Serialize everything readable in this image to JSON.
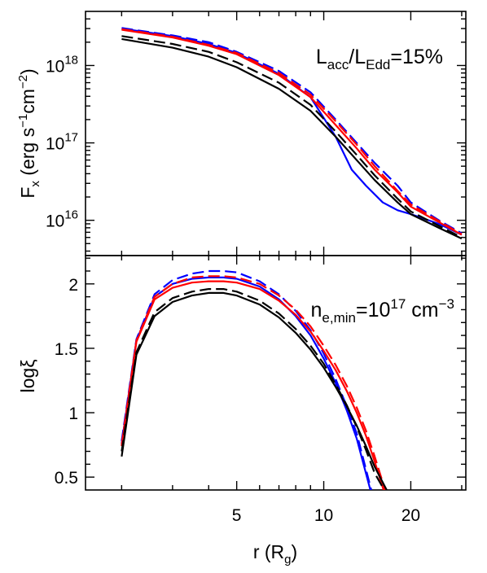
{
  "chart_data": {
    "type": "line",
    "x_scale": "log",
    "x_ticks": [
      {
        "value": 5,
        "label": "5"
      },
      {
        "value": 10,
        "label": "10"
      },
      {
        "value": 20,
        "label": "20"
      }
    ],
    "x_minor_ticks": [
      2,
      3,
      4,
      6,
      7,
      8,
      9,
      30
    ],
    "xlabel": {
      "main": "r (R",
      "sub": "g",
      "end": ")"
    },
    "xlim": [
      1.5,
      31
    ],
    "panels": [
      {
        "id": "top",
        "ylabel": {
          "main": "F",
          "sub": "x",
          "rest": " (erg s",
          "sup1": "−1",
          "mid": "cm",
          "sup2": "−2",
          "end": ")"
        },
        "y_scale": "log",
        "ylim": [
          3500000000000000,
          5000000000000000000
        ],
        "y_ticks": [
          {
            "value": 10000000000000000,
            "base": "10",
            "exp": "16"
          },
          {
            "value": 100000000000000000,
            "base": "10",
            "exp": "17"
          },
          {
            "value": 1000000000000000000,
            "base": "10",
            "exp": "18"
          }
        ],
        "annotation": {
          "a": "L",
          "a_sub": "acc",
          "b": "/L",
          "b_sub": "Edd",
          "c": "=15%"
        },
        "series": [
          {
            "color": "#0000ff",
            "dash": "solid",
            "x": [
              2,
              3,
              4,
              5,
              7,
              9,
              11,
              12.5,
              14,
              16,
              18,
              20,
              25,
              30
            ],
            "y": [
              3e+18,
              2.4e+18,
              1.9e+18,
              1.45e+18,
              7.8e+17,
              3.9e+17,
              1.2e+17,
              4.5e+16,
              2.8e+16,
              1.7e+16,
              1.35e+16,
              1.2e+16,
              9000000000000000.0,
              6500000000000000.0
            ]
          },
          {
            "color": "#0000ff",
            "dash": "dashed",
            "x": [
              2,
              3,
              4,
              5,
              7,
              9,
              11,
              13,
              15,
              18,
              20,
              25,
              30
            ],
            "y": [
              3.05e+18,
              2.45e+18,
              2e+18,
              1.5e+18,
              8.5e+17,
              4.5e+17,
              2e+17,
              1e+17,
              5.5e+16,
              2.8e+16,
              1.7e+16,
              1e+16,
              6800000000000000.0
            ]
          },
          {
            "color": "#ff0000",
            "dash": "solid",
            "x": [
              2,
              3,
              4,
              5,
              7,
              9,
              11,
              13,
              15,
              18,
              20,
              25,
              30
            ],
            "y": [
              2.9e+18,
              2.3e+18,
              1.8e+18,
              1.4e+18,
              7.5e+17,
              3.9e+17,
              1.7e+17,
              8.5e+16,
              4.5e+16,
              2.3e+16,
              1.5e+16,
              9500000000000000.0,
              6500000000000000.0
            ]
          },
          {
            "color": "#ff0000",
            "dash": "dashed",
            "x": [
              2,
              3,
              4,
              5,
              7,
              9,
              11,
              13,
              15,
              18,
              20,
              25,
              30
            ],
            "y": [
              2.95e+18,
              2.35e+18,
              1.85e+18,
              1.45e+18,
              8e+17,
              4.2e+17,
              1.9e+17,
              9.5e+16,
              5e+16,
              2.4e+16,
              1.6e+16,
              9800000000000000.0,
              6600000000000000.0
            ]
          },
          {
            "color": "#000000",
            "dash": "solid",
            "x": [
              2,
              3,
              4,
              5,
              7,
              9,
              11,
              13,
              15,
              18,
              20,
              25,
              30
            ],
            "y": [
              2.2e+18,
              1.7e+18,
              1.3e+18,
              9.5e+17,
              5e+17,
              2.6e+17,
              1.2e+17,
              6e+16,
              3.3e+16,
              1.7e+16,
              1.2e+16,
              8000000000000000.0,
              5800000000000000.0
            ]
          },
          {
            "color": "#000000",
            "dash": "dashed",
            "x": [
              2,
              3,
              4,
              5,
              7,
              9,
              11,
              13,
              15,
              18,
              20,
              25,
              30
            ],
            "y": [
              2.4e+18,
              1.9e+18,
              1.5e+18,
              1.1e+18,
              6e+17,
              3.1e+17,
              1.4e+17,
              7e+16,
              3.8e+16,
              1.9e+16,
              1.3e+16,
              8500000000000000.0,
              6000000000000000.0
            ]
          }
        ]
      },
      {
        "id": "bottom",
        "ylabel": {
          "main": "logξ"
        },
        "y_scale": "linear",
        "ylim": [
          0.4,
          2.22
        ],
        "y_ticks": [
          {
            "value": 0.5,
            "label": "0.5"
          },
          {
            "value": 1,
            "label": "1"
          },
          {
            "value": 1.5,
            "label": "1.5"
          },
          {
            "value": 2,
            "label": "2"
          }
        ],
        "annotation": {
          "a": "n",
          "a_sub": "e,min",
          "b": "=10",
          "b_sup": "17",
          "c": " cm",
          "c_sup": "−3"
        },
        "series": [
          {
            "color": "#0000ff",
            "dash": "solid",
            "x": [
              2,
              2.25,
              2.6,
              3,
              3.5,
              4,
              4.5,
              5,
              6,
              7,
              8,
              9,
              10,
              11,
              12,
              13,
              14.5
            ],
            "y": [
              0.76,
              1.56,
              1.9,
              2.0,
              2.04,
              2.05,
              2.05,
              2.04,
              1.98,
              1.88,
              1.75,
              1.6,
              1.42,
              1.23,
              1.02,
              0.8,
              0.4
            ]
          },
          {
            "color": "#0000ff",
            "dash": "dashed",
            "x": [
              2,
              2.25,
              2.6,
              3,
              3.5,
              4,
              4.5,
              5,
              6,
              7,
              8,
              9,
              10,
              11,
              12,
              13,
              14.6
            ],
            "y": [
              0.78,
              1.57,
              1.92,
              2.03,
              2.08,
              2.1,
              2.1,
              2.09,
              2.02,
              1.92,
              1.79,
              1.64,
              1.46,
              1.26,
              1.05,
              0.84,
              0.4
            ]
          },
          {
            "color": "#ff0000",
            "dash": "solid",
            "x": [
              2,
              2.25,
              2.6,
              3,
              3.5,
              4,
              4.5,
              5,
              6,
              7,
              8,
              9,
              10,
              11,
              12,
              13,
              14,
              15,
              16.1
            ],
            "y": [
              0.74,
              1.55,
              1.88,
              1.97,
              2.01,
              2.02,
              2.02,
              2.01,
              1.96,
              1.87,
              1.76,
              1.63,
              1.48,
              1.33,
              1.17,
              1.0,
              0.82,
              0.62,
              0.4
            ]
          },
          {
            "color": "#ff0000",
            "dash": "dashed",
            "x": [
              2,
              2.25,
              2.6,
              3,
              3.5,
              4,
              4.5,
              5,
              6,
              7,
              8,
              9,
              10,
              11,
              12,
              13,
              14,
              15,
              16.3
            ],
            "y": [
              0.75,
              1.56,
              1.9,
              2.0,
              2.05,
              2.06,
              2.06,
              2.05,
              2.0,
              1.91,
              1.8,
              1.67,
              1.52,
              1.37,
              1.21,
              1.04,
              0.86,
              0.66,
              0.4
            ]
          },
          {
            "color": "#000000",
            "dash": "solid",
            "x": [
              2,
              2.25,
              2.6,
              3,
              3.5,
              4,
              4.5,
              5,
              6,
              7,
              8,
              9,
              10,
              11,
              12,
              13,
              14,
              15,
              16.5
            ],
            "y": [
              0.66,
              1.45,
              1.75,
              1.86,
              1.91,
              1.93,
              1.93,
              1.91,
              1.84,
              1.74,
              1.62,
              1.49,
              1.35,
              1.2,
              1.05,
              0.9,
              0.74,
              0.58,
              0.4
            ]
          },
          {
            "color": "#000000",
            "dash": "dashed",
            "x": [
              2,
              2.25,
              2.6,
              3,
              3.5,
              4,
              4.5,
              5,
              6,
              7,
              8,
              9,
              10,
              11,
              12,
              13,
              14,
              15,
              16
            ],
            "y": [
              0.7,
              1.47,
              1.78,
              1.89,
              1.94,
              1.96,
              1.96,
              1.94,
              1.87,
              1.77,
              1.65,
              1.52,
              1.38,
              1.22,
              1.06,
              0.89,
              0.71,
              0.53,
              0.42
            ]
          }
        ]
      }
    ]
  }
}
